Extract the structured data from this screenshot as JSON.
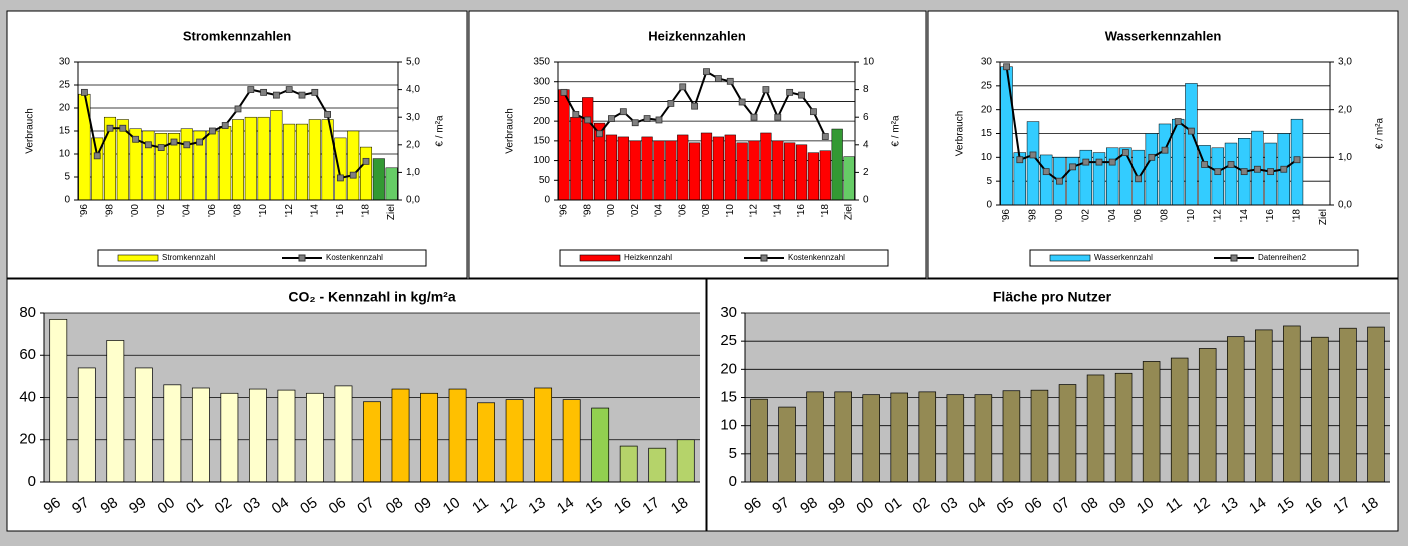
{
  "chart_data": [
    {
      "type": "combo",
      "title": "Stromkennzahlen",
      "y_label": "Verbrauch",
      "y2_label": "€ / m²a",
      "categories": [
        "'96",
        null,
        "'98",
        null,
        "'00",
        null,
        "'02",
        null,
        "'04",
        null,
        "'06",
        null,
        "'08",
        null,
        "'10",
        null,
        "'12",
        null,
        "'14",
        null,
        "'16",
        null,
        "'18",
        null,
        "Ziel"
      ],
      "series": [
        {
          "name": "Stromkennzahl",
          "kind": "bar",
          "color": "#ffff00",
          "colors": [
            "#ffff00",
            "#ffff00",
            "#ffff00",
            "#ffff00",
            "#ffff00",
            "#ffff00",
            "#ffff00",
            "#ffff00",
            "#ffff00",
            "#ffff00",
            "#ffff00",
            "#ffff00",
            "#ffff00",
            "#ffff00",
            "#ffff00",
            "#ffff00",
            "#ffff00",
            "#ffff00",
            "#ffff00",
            "#ffff00",
            "#ffff00",
            "#ffff00",
            "#ffff00",
            "#339933",
            "#66cc66"
          ],
          "values": [
            23,
            13.5,
            18,
            17.5,
            15.5,
            15,
            14.5,
            14.5,
            15.5,
            15,
            15,
            16,
            17.5,
            18,
            18,
            19.5,
            16.5,
            16.5,
            17.5,
            17.5,
            13.5,
            15,
            11.5,
            9,
            7
          ]
        },
        {
          "name": "Kostenkennzahl",
          "kind": "line",
          "axis": "y2",
          "color": "#000000",
          "values": [
            3.9,
            1.6,
            2.6,
            2.6,
            2.2,
            2.0,
            1.9,
            2.1,
            2.0,
            2.1,
            2.5,
            2.7,
            3.3,
            4.0,
            3.9,
            3.8,
            4.0,
            3.8,
            3.9,
            3.1,
            0.8,
            0.9,
            1.4,
            null,
            null
          ]
        }
      ],
      "ylim": [
        0,
        30
      ],
      "yticks": [
        0,
        5,
        10,
        15,
        20,
        25,
        30
      ],
      "y2lim": [
        0,
        5
      ],
      "y2ticks": [
        {
          "value": 0,
          "label": "0,0"
        },
        {
          "value": 1,
          "label": "1,0"
        },
        {
          "value": 2,
          "label": "2,0"
        },
        {
          "value": 3,
          "label": "3,0"
        },
        {
          "value": 4,
          "label": "4,0"
        },
        {
          "value": 5,
          "label": "5,0"
        }
      ],
      "grid": true,
      "legend": "bottom"
    },
    {
      "type": "combo",
      "title": "Heizkennzahlen",
      "y_label": "Verbrauch",
      "y2_label": "€ / m²a",
      "categories": [
        "'96",
        null,
        "'98",
        null,
        "'00",
        null,
        "'02",
        null,
        "'04",
        null,
        "'06",
        null,
        "'08",
        null,
        "'10",
        null,
        "'12",
        null,
        "'14",
        null,
        "'16",
        null,
        "'18",
        null,
        "Ziel"
      ],
      "series": [
        {
          "name": "Heizkennzahl",
          "kind": "bar",
          "color": "#ff0000",
          "colors": [
            "#ff0000",
            "#ff0000",
            "#ff0000",
            "#ff0000",
            "#ff0000",
            "#ff0000",
            "#ff0000",
            "#ff0000",
            "#ff0000",
            "#ff0000",
            "#ff0000",
            "#ff0000",
            "#ff0000",
            "#ff0000",
            "#ff0000",
            "#ff0000",
            "#ff0000",
            "#ff0000",
            "#ff0000",
            "#ff0000",
            "#ff0000",
            "#ff0000",
            "#ff0000",
            "#339933",
            "#66cc66"
          ],
          "values": [
            280,
            210,
            260,
            195,
            165,
            160,
            150,
            160,
            150,
            150,
            165,
            145,
            170,
            160,
            165,
            145,
            150,
            170,
            150,
            145,
            140,
            120,
            125,
            180,
            110
          ]
        },
        {
          "name": "Kostenkennzahl",
          "kind": "line",
          "axis": "y2",
          "color": "#000000",
          "values": [
            7.8,
            6.2,
            5.8,
            4.8,
            5.9,
            6.4,
            5.6,
            5.9,
            5.8,
            7.0,
            8.2,
            6.8,
            9.3,
            8.8,
            8.6,
            7.1,
            6.0,
            8.0,
            6.0,
            7.8,
            7.6,
            6.4,
            4.6,
            null,
            null
          ]
        }
      ],
      "ylim": [
        0,
        350
      ],
      "yticks": [
        0,
        50,
        100,
        150,
        200,
        250,
        300,
        350
      ],
      "y2lim": [
        0,
        10
      ],
      "y2ticks": [
        0,
        2,
        4,
        6,
        8,
        10
      ],
      "grid": true,
      "legend": "bottom"
    },
    {
      "type": "combo",
      "title": "Wasserkennzahlen",
      "y_label": "Verbrauch",
      "y2_label": "€ / m²a",
      "categories": [
        "'96",
        null,
        "'98",
        null,
        "'00",
        null,
        "'02",
        null,
        "'04",
        null,
        "'06",
        null,
        "'08",
        null,
        "'10",
        null,
        "'12",
        null,
        "'14",
        null,
        "'16",
        null,
        "'18",
        null,
        "Ziel"
      ],
      "series": [
        {
          "name": "Wasserkennzahl",
          "kind": "bar",
          "color": "#33ccff",
          "values": [
            29,
            11,
            17.5,
            10.5,
            10,
            10,
            11.5,
            11,
            12,
            12,
            11.5,
            15,
            17,
            18,
            25.5,
            12.5,
            12,
            13,
            14,
            15.5,
            13,
            15,
            18,
            null,
            null
          ]
        },
        {
          "name": "Datenreihen2",
          "kind": "line",
          "axis": "y2",
          "color": "#000000",
          "values": [
            2.9,
            0.95,
            1.05,
            0.7,
            0.5,
            0.8,
            0.9,
            0.9,
            0.9,
            1.1,
            0.55,
            1.0,
            1.15,
            1.75,
            1.55,
            0.85,
            0.7,
            0.85,
            0.7,
            0.75,
            0.7,
            0.75,
            0.95,
            null,
            null
          ]
        }
      ],
      "ylim": [
        0,
        30
      ],
      "yticks": [
        0,
        5,
        10,
        15,
        20,
        25,
        30
      ],
      "y2lim": [
        0,
        3
      ],
      "y2ticks": [
        {
          "value": 0,
          "label": "0,0"
        },
        {
          "value": 1,
          "label": "1,0"
        },
        {
          "value": 2,
          "label": "2,0"
        },
        {
          "value": 3,
          "label": "3,0"
        }
      ],
      "grid": true,
      "legend": "bottom"
    },
    {
      "type": "bar",
      "title": "CO₂ - Kennzahl in kg/m²a",
      "categories": [
        "96",
        "97",
        "98",
        "99",
        "00",
        "01",
        "02",
        "03",
        "04",
        "05",
        "06",
        "07",
        "08",
        "09",
        "10",
        "11",
        "12",
        "13",
        "14",
        "15",
        "16",
        "17",
        "18"
      ],
      "values": [
        77,
        54,
        67,
        54,
        46,
        44.5,
        42,
        44,
        43.5,
        42,
        45.5,
        38,
        44,
        42,
        44,
        37.5,
        39,
        44.5,
        39,
        35,
        17,
        16,
        20
      ],
      "colors": [
        "#ffffcc",
        "#ffffcc",
        "#ffffcc",
        "#ffffcc",
        "#ffffcc",
        "#ffffcc",
        "#ffffcc",
        "#ffffcc",
        "#ffffcc",
        "#ffffcc",
        "#ffffcc",
        "#ffc000",
        "#ffc000",
        "#ffc000",
        "#ffc000",
        "#ffc000",
        "#ffc000",
        "#ffc000",
        "#ffc000",
        "#92d050",
        "#b5d36a",
        "#b5d36a",
        "#b5d36a"
      ],
      "ylim": [
        0,
        80
      ],
      "yticks": [
        0,
        20,
        40,
        60,
        80
      ],
      "grid": true
    },
    {
      "type": "bar",
      "title": "Fläche pro Nutzer",
      "categories": [
        "96",
        "97",
        "98",
        "99",
        "00",
        "01",
        "02",
        "03",
        "04",
        "05",
        "06",
        "07",
        "08",
        "09",
        "10",
        "11",
        "12",
        "13",
        "14",
        "15",
        "16",
        "17",
        "18"
      ],
      "values": [
        14.7,
        13.3,
        16,
        16,
        15.5,
        15.8,
        16,
        15.5,
        15.5,
        16.2,
        16.3,
        17.3,
        19,
        19.3,
        21.4,
        22,
        23.7,
        25.8,
        27,
        27.7,
        25.7,
        27.3,
        27.5
      ],
      "color": "#948a54",
      "ylim": [
        0,
        30
      ],
      "yticks": [
        0,
        5,
        10,
        15,
        20,
        25,
        30
      ],
      "grid": true
    }
  ]
}
